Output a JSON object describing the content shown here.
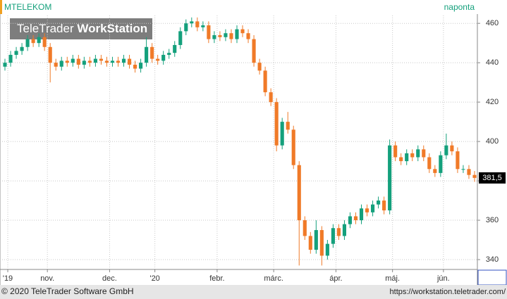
{
  "chart_data": {
    "type": "candlestick",
    "title": "MTELEKOM",
    "subtitle": "naponta",
    "watermark": {
      "light": "TeleTrader",
      "bold": "WorkStation"
    },
    "footer_left": "© 2020 TeleTrader Software GmbH",
    "footer_right": "https://workstation.teletrader.com/",
    "up_color": "#14a07c",
    "down_color": "#f07a28",
    "ylim": [
      335,
      464
    ],
    "yticks": [
      340,
      360,
      380,
      400,
      420,
      440,
      460
    ],
    "xlim": [
      0,
      84
    ],
    "xticks": [
      {
        "value": 1,
        "label": "'19"
      },
      {
        "value": 8,
        "label": "nov."
      },
      {
        "value": 19,
        "label": "dec."
      },
      {
        "value": 27,
        "label": "'20"
      },
      {
        "value": 38,
        "label": "febr."
      },
      {
        "value": 48,
        "label": "márc."
      },
      {
        "value": 59,
        "label": "ápr."
      },
      {
        "value": 69,
        "label": "máj."
      },
      {
        "value": 78,
        "label": "jún."
      }
    ],
    "grid": true,
    "last": {
      "value": 381.5,
      "label": "381,5"
    },
    "open": [
      438,
      440,
      444,
      446,
      448,
      452,
      450,
      453,
      448,
      440,
      438,
      441,
      440,
      442,
      439,
      441,
      440,
      442,
      441,
      440,
      441,
      440,
      442,
      439,
      437,
      440,
      448,
      442,
      441,
      444,
      445,
      449,
      456,
      460,
      461,
      458,
      459,
      452,
      454,
      453,
      455,
      452,
      457,
      455,
      452,
      440,
      436,
      425,
      420,
      398,
      410,
      406,
      388,
      360,
      352,
      345,
      355,
      342,
      348,
      356,
      352,
      358,
      362,
      360,
      366,
      364,
      368,
      370,
      365,
      398,
      392,
      390,
      394,
      392,
      396,
      392,
      386,
      384,
      393,
      398,
      395,
      386,
      386,
      383
    ],
    "high": [
      442,
      446,
      448,
      450,
      454,
      454,
      455,
      455,
      450,
      442,
      443,
      443,
      444,
      444,
      443,
      443,
      444,
      444,
      443,
      443,
      443,
      444,
      444,
      441,
      442,
      453,
      450,
      444,
      446,
      447,
      451,
      458,
      462,
      463,
      463,
      461,
      461,
      456,
      456,
      457,
      457,
      459,
      459,
      457,
      454,
      442,
      438,
      427,
      422,
      412,
      415,
      408,
      390,
      362,
      354,
      360,
      357,
      350,
      358,
      358,
      360,
      364,
      364,
      368,
      368,
      370,
      372,
      372,
      401,
      400,
      394,
      396,
      396,
      398,
      398,
      394,
      388,
      395,
      404,
      400,
      397,
      388,
      388,
      385
    ],
    "low": [
      436,
      438,
      442,
      444,
      446,
      448,
      448,
      446,
      430,
      436,
      436,
      438,
      438,
      437,
      437,
      438,
      438,
      439,
      438,
      438,
      438,
      438,
      437,
      435,
      435,
      438,
      440,
      439,
      439,
      442,
      443,
      447,
      454,
      458,
      456,
      456,
      450,
      450,
      451,
      451,
      450,
      450,
      453,
      450,
      438,
      434,
      423,
      418,
      395,
      396,
      404,
      386,
      337,
      350,
      343,
      343,
      337,
      340,
      346,
      350,
      350,
      356,
      358,
      358,
      362,
      362,
      366,
      363,
      363,
      390,
      388,
      388,
      390,
      390,
      390,
      384,
      382,
      382,
      391,
      393,
      384,
      384,
      381,
      379.5
    ],
    "close": [
      440,
      444,
      446,
      448,
      452,
      450,
      453,
      448,
      440,
      438,
      441,
      440,
      442,
      439,
      441,
      440,
      442,
      441,
      440,
      441,
      440,
      442,
      439,
      437,
      440,
      448,
      442,
      441,
      444,
      445,
      449,
      456,
      460,
      461,
      458,
      459,
      452,
      454,
      453,
      455,
      452,
      457,
      455,
      452,
      440,
      436,
      425,
      420,
      398,
      410,
      406,
      388,
      360,
      352,
      345,
      355,
      342,
      348,
      356,
      352,
      358,
      362,
      360,
      366,
      364,
      368,
      370,
      365,
      398,
      392,
      390,
      394,
      392,
      396,
      392,
      386,
      384,
      393,
      398,
      395,
      386,
      386,
      383,
      381.5
    ]
  }
}
